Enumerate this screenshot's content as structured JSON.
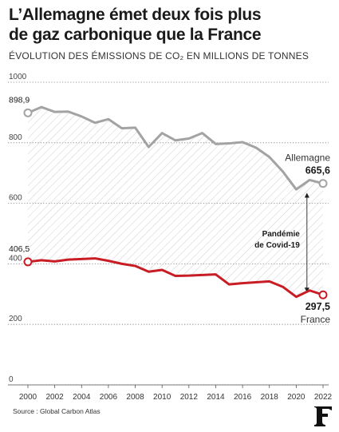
{
  "title_line1": "L’Allemagne émet deux fois plus",
  "title_line2": "de gaz carbonique que la France",
  "subtitle": "ÉVOLUTION DES ÉMISSIONS DE CO₂ EN MILLIONS DE TONNES",
  "source": "Source : Global Carbon Atlas",
  "logo_icon": "le-figaro-f-logo-icon",
  "chart_data": {
    "type": "line",
    "ylim": [
      0,
      1000
    ],
    "xlim": [
      2000,
      2022
    ],
    "grid": true,
    "y_ticks": [
      {
        "value": 0,
        "label": "0"
      },
      {
        "value": 200,
        "label": "200"
      },
      {
        "value": 400,
        "label": "400"
      },
      {
        "value": 600,
        "label": "600"
      },
      {
        "value": 800,
        "label": "800"
      },
      {
        "value": 1000,
        "label": "1000"
      }
    ],
    "x_ticks": [
      {
        "value": 2000,
        "label": "2000"
      },
      {
        "value": 2002,
        "label": "2002"
      },
      {
        "value": 2004,
        "label": "2004"
      },
      {
        "value": 2006,
        "label": "2006"
      },
      {
        "value": 2008,
        "label": "2008"
      },
      {
        "value": 2010,
        "label": "2010"
      },
      {
        "value": 2012,
        "label": "2012"
      },
      {
        "value": 2014,
        "label": "2014"
      },
      {
        "value": 2016,
        "label": "2016"
      },
      {
        "value": 2018,
        "label": "2018"
      },
      {
        "value": 2020,
        "label": "2020"
      },
      {
        "value": 2022,
        "label": "2022"
      }
    ],
    "x": [
      2000,
      2001,
      2002,
      2003,
      2004,
      2005,
      2006,
      2007,
      2008,
      2009,
      2010,
      2011,
      2012,
      2013,
      2014,
      2015,
      2016,
      2017,
      2018,
      2019,
      2020,
      2021,
      2022
    ],
    "series": [
      {
        "name": "Allemagne",
        "color": "#a3a3a3",
        "values": [
          898.9,
          918,
          902,
          903,
          887,
          866,
          878,
          848,
          850,
          786,
          832,
          808,
          814,
          832,
          796,
          798,
          802,
          784,
          753,
          705,
          646,
          677,
          665.6
        ],
        "start_label": "898,9",
        "end_label": "665,6"
      },
      {
        "name": "France",
        "color": "#c81d25",
        "values": [
          406.5,
          412,
          408,
          414,
          416,
          418,
          410,
          400,
          393,
          374,
          380,
          360,
          361,
          363,
          365,
          332,
          336,
          339,
          342,
          324,
          291,
          312,
          297.5
        ],
        "start_label": "406,5",
        "end_label": "297,5"
      }
    ],
    "annotation": {
      "x": 2020.8,
      "line1": "Pandémie",
      "line2": "de Covid-19"
    }
  }
}
